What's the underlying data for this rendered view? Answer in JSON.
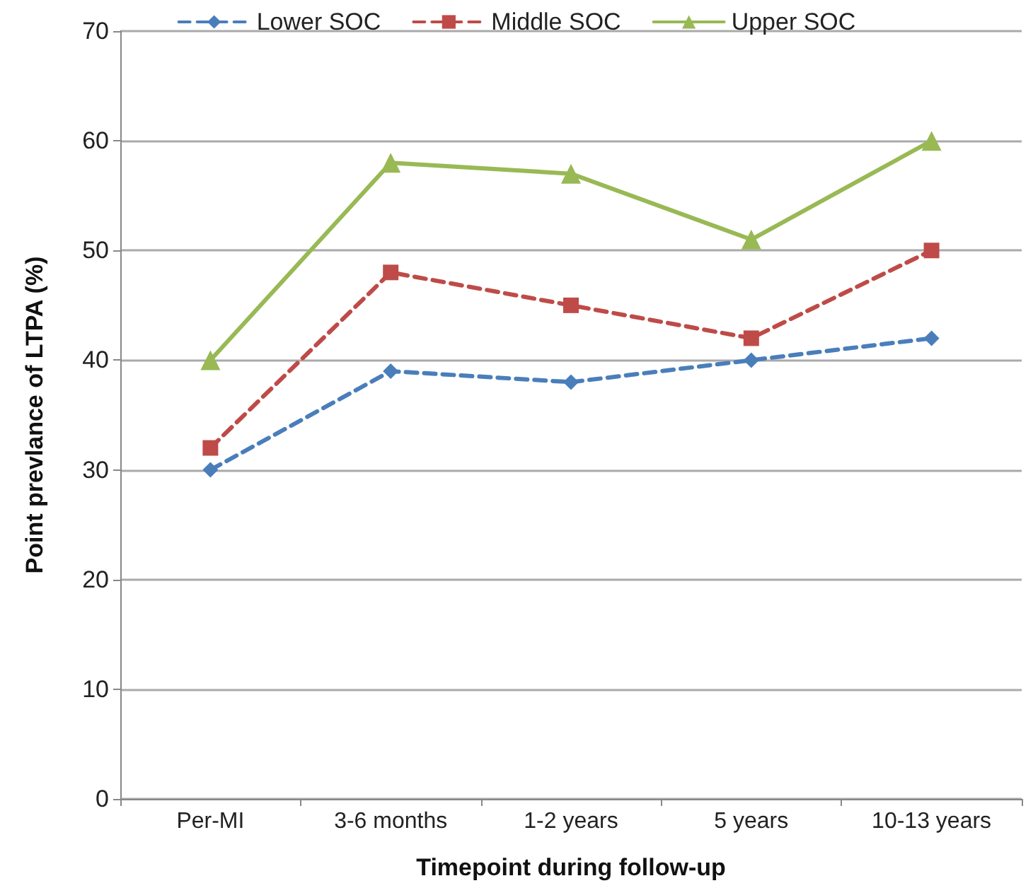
{
  "chart_data": {
    "type": "line",
    "xlabel": "Timepoint during follow-up",
    "ylabel": "Point prevlance of LTPA (%)",
    "categories": [
      "Per-MI",
      "3-6 months",
      "1-2 years",
      "5 years",
      "10-13 years"
    ],
    "series": [
      {
        "name": "Lower SOC",
        "color": "#4a7ebb",
        "values": [
          30,
          39,
          38,
          40,
          42
        ],
        "marker": "diamond",
        "line_style": "dashed"
      },
      {
        "name": "Middle SOC",
        "color": "#be4b48",
        "values": [
          32,
          48,
          45,
          42,
          50
        ],
        "marker": "square",
        "line_style": "dashed"
      },
      {
        "name": "Upper SOC",
        "color": "#98b954",
        "values": [
          40,
          58,
          57,
          51,
          60
        ],
        "marker": "triangle",
        "line_style": "solid"
      }
    ],
    "ylim": [
      0,
      70
    ],
    "yticks": [
      0,
      10,
      20,
      30,
      40,
      50,
      60,
      70
    ],
    "grid": "y",
    "legend": "top"
  }
}
